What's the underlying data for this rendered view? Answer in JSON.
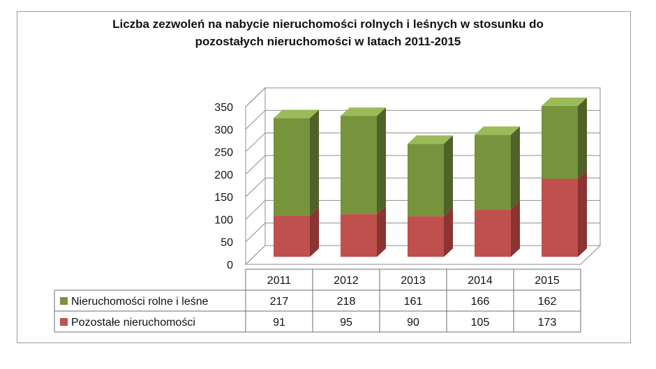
{
  "chart_data": {
    "type": "bar",
    "stacked": true,
    "three_d": true,
    "title_lines": [
      "Liczba zezwoleń na nabycie nieruchomości rolnych i leśnych w stosunku do",
      "pozostałych nieruchomości w latach 2011-2015"
    ],
    "categories": [
      "2011",
      "2012",
      "2013",
      "2014",
      "2015"
    ],
    "series": [
      {
        "name": "Pozostałe nieruchomości",
        "values": [
          91,
          95,
          90,
          105,
          173
        ]
      },
      {
        "name": "Nieruchomości rolne i leśne",
        "values": [
          217,
          218,
          161,
          166,
          162
        ]
      }
    ],
    "table_rows": [
      {
        "series": "Nieruchomości rolne i leśne",
        "values": [
          "217",
          "218",
          "161",
          "166",
          "162"
        ]
      },
      {
        "series": "Pozostałe nieruchomości",
        "values": [
          "91",
          "95",
          "90",
          "105",
          "173"
        ]
      }
    ],
    "yticks": [
      "0",
      "50",
      "100",
      "150",
      "200",
      "250",
      "300",
      "350"
    ],
    "ylim": [
      0,
      350
    ],
    "grid": true,
    "legend": "data-table"
  },
  "colors": {
    "Pozostałe nieruchomości": {
      "front": "#c0504d",
      "side": "#8b3432",
      "top": "#d98583"
    },
    "Nieruchomości rolne i leśne": {
      "front": "#77933c",
      "side": "#4f6228",
      "top": "#9bbb59"
    }
  }
}
